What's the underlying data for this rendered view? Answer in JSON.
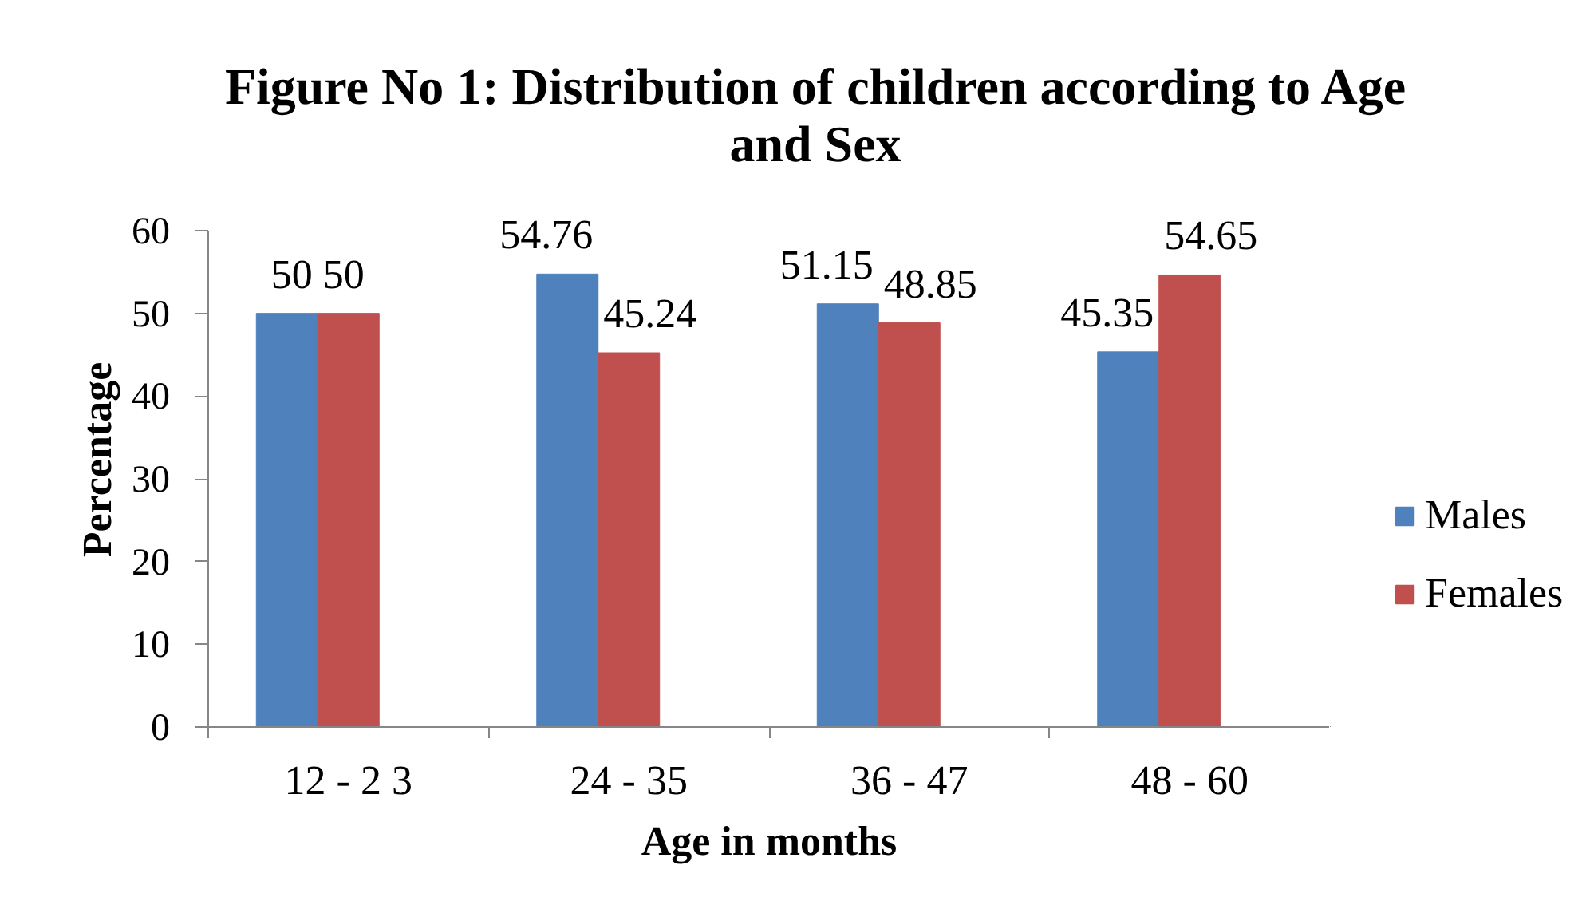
{
  "chart_data": {
    "type": "bar",
    "title": "Figure No 1: Distribution of children according to Age and Sex",
    "xlabel": "Age in months",
    "ylabel": "Percentage",
    "categories": [
      "12 - 2 3",
      "24 - 35",
      "36 - 47",
      "48 - 60"
    ],
    "series": [
      {
        "name": "Males",
        "color": "#4f81bd",
        "values": [
          50,
          54.76,
          51.15,
          45.35
        ]
      },
      {
        "name": "Females",
        "color": "#c0504d",
        "values": [
          50,
          45.24,
          48.85,
          54.65
        ]
      }
    ],
    "ylim": [
      0,
      60
    ],
    "yticks": [
      0,
      10,
      20,
      30,
      40,
      50,
      60
    ],
    "legend": "right",
    "data_labels": true
  }
}
